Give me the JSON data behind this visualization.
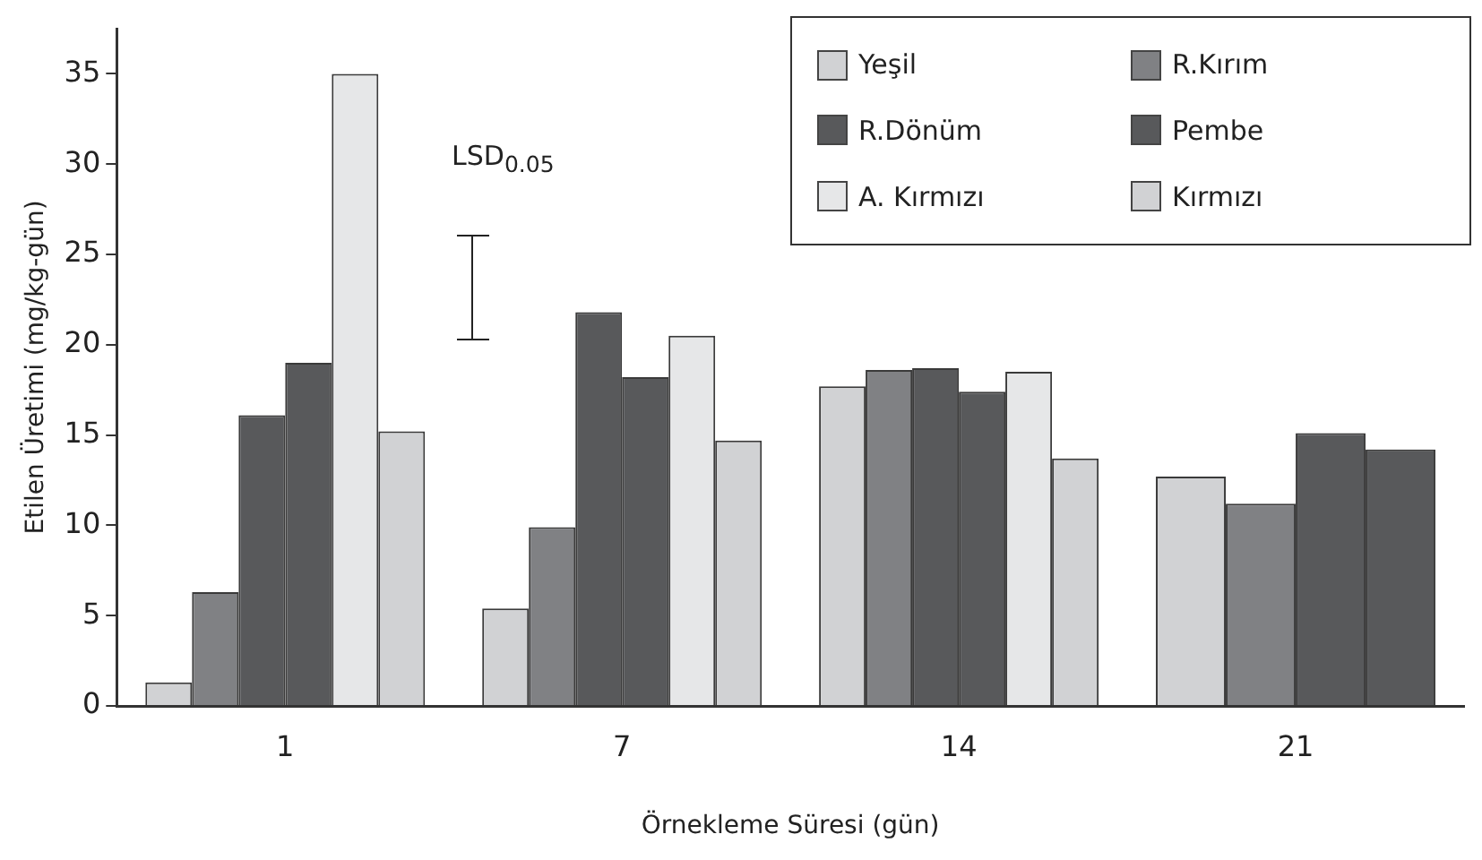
{
  "chart_data": {
    "type": "bar",
    "xlabel": "Örnekleme Süresi (gün)",
    "ylabel": "Etilen Üretimi (mg/kg-gün)",
    "categories": [
      "1",
      "7",
      "14",
      "21"
    ],
    "series": [
      {
        "name": "Yeşil",
        "color": "#d1d2d4",
        "values": [
          1.3,
          5.4,
          17.7,
          12.7
        ]
      },
      {
        "name": "R.Kırım",
        "color": "#808184",
        "values": [
          6.3,
          9.9,
          18.6,
          11.2
        ]
      },
      {
        "name": "R.Dönüm",
        "color": "#58595b",
        "values": [
          16.1,
          21.8,
          18.7,
          15.1
        ]
      },
      {
        "name": "Pembe",
        "color": "#58595b",
        "values": [
          19.0,
          18.2,
          17.4,
          14.2
        ]
      },
      {
        "name": "A. Kırmızı",
        "color": "#e6e7e8",
        "values": [
          35.0,
          20.5,
          18.5,
          null
        ]
      },
      {
        "name": "Kırmızı",
        "color": "#d1d2d4",
        "values": [
          15.2,
          14.7,
          13.7,
          null
        ]
      }
    ],
    "ylim": [
      0,
      37.5
    ],
    "yticks": [
      0,
      5,
      10,
      15,
      20,
      25,
      30,
      35
    ],
    "annotations": [
      "LSD$_{0.05}$"
    ],
    "legend": "top right"
  }
}
